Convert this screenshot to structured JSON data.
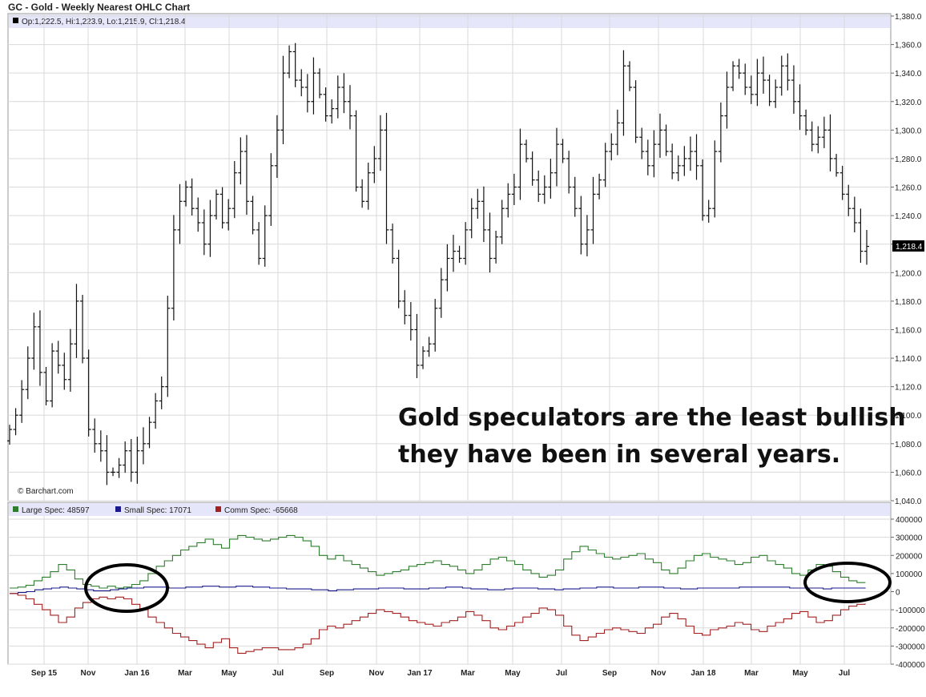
{
  "header": {
    "title": "GC - Gold - Weekly Nearest OHLC Chart",
    "ohlc_legend": "Op:1,222.5, Hi:1,223.9, Lo:1,215.9, Cl:1,218.4",
    "last_price": "1,218.4",
    "copyright": "© Barchart.com"
  },
  "annotation": {
    "line1": "Gold speculators are the least bullish",
    "line2": "they have been in several years."
  },
  "cot_legend": {
    "large": "Large Spec: 48597",
    "small": "Small Spec: 17071",
    "comm": "Comm Spec: -65668"
  },
  "colors": {
    "large": "#2e7d2e",
    "small": "#1a1a8c",
    "comm": "#a32020",
    "legend_band": "#e6e6fa",
    "grid": "#d9d9d9",
    "price_bar": "#111111",
    "circle": "#000000"
  },
  "chart_data": [
    {
      "type": "ohlc",
      "title": "GC - Gold - Weekly Nearest OHLC Chart",
      "ylim": [
        1040,
        1380
      ],
      "y_ticks": [
        "1,380.0",
        "1,360.0",
        "1,340.0",
        "1,320.0",
        "1,300.0",
        "1,280.0",
        "1,260.0",
        "1,240.0",
        "1,220.0",
        "1,200.0",
        "1,180.0",
        "1,160.0",
        "1,140.0",
        "1,120.0",
        "1,100.0",
        "1,080.0",
        "1,060.0",
        "1,040.0"
      ],
      "x_ticks": [
        "Sep 15",
        "Nov",
        "Jan 16",
        "Mar",
        "May",
        "Jul",
        "Sep",
        "Nov",
        "Jan 17",
        "Mar",
        "May",
        "Jul",
        "Sep",
        "Nov",
        "Jan 18",
        "Mar",
        "May",
        "Jul"
      ],
      "grid": true,
      "legend": "top-left",
      "weekly_closes": [
        1090,
        1100,
        1118,
        1140,
        1162,
        1130,
        1110,
        1145,
        1135,
        1125,
        1150,
        1180,
        1140,
        1090,
        1080,
        1075,
        1060,
        1060,
        1065,
        1075,
        1060,
        1075,
        1080,
        1095,
        1110,
        1120,
        1175,
        1230,
        1250,
        1260,
        1245,
        1235,
        1220,
        1240,
        1255,
        1235,
        1245,
        1270,
        1285,
        1250,
        1230,
        1210,
        1240,
        1275,
        1300,
        1340,
        1355,
        1335,
        1330,
        1320,
        1340,
        1325,
        1310,
        1315,
        1330,
        1320,
        1310,
        1260,
        1250,
        1270,
        1280,
        1300,
        1230,
        1210,
        1180,
        1170,
        1160,
        1135,
        1145,
        1150,
        1175,
        1195,
        1210,
        1215,
        1210,
        1230,
        1245,
        1250,
        1230,
        1210,
        1225,
        1245,
        1255,
        1260,
        1290,
        1280,
        1265,
        1255,
        1260,
        1270,
        1290,
        1280,
        1260,
        1245,
        1220,
        1230,
        1255,
        1265,
        1285,
        1290,
        1305,
        1345,
        1330,
        1295,
        1285,
        1275,
        1290,
        1300,
        1285,
        1270,
        1275,
        1280,
        1285,
        1275,
        1240,
        1245,
        1285,
        1310,
        1330,
        1345,
        1340,
        1330,
        1325,
        1340,
        1335,
        1320,
        1330,
        1345,
        1335,
        1320,
        1310,
        1300,
        1290,
        1295,
        1300,
        1280,
        1270,
        1255,
        1245,
        1235,
        1215,
        1218.4
      ]
    },
    {
      "type": "line",
      "title": "",
      "ylim": [
        -400000,
        400000
      ],
      "y_ticks": [
        "400000",
        "300000",
        "200000",
        "100000",
        "0",
        "-100000",
        "-200000",
        "-300000",
        "-400000"
      ],
      "legend": "top-left",
      "series": [
        {
          "name": "Large Spec",
          "values": [
            20000,
            25000,
            35000,
            60000,
            80000,
            110000,
            150000,
            120000,
            70000,
            40000,
            30000,
            20000,
            30000,
            20000,
            25000,
            40000,
            60000,
            100000,
            140000,
            170000,
            200000,
            230000,
            250000,
            270000,
            290000,
            260000,
            240000,
            290000,
            310000,
            300000,
            290000,
            280000,
            290000,
            300000,
            310000,
            300000,
            280000,
            250000,
            200000,
            180000,
            200000,
            170000,
            150000,
            130000,
            110000,
            90000,
            100000,
            110000,
            120000,
            140000,
            150000,
            160000,
            170000,
            150000,
            140000,
            120000,
            100000,
            120000,
            150000,
            180000,
            190000,
            170000,
            150000,
            120000,
            100000,
            80000,
            90000,
            120000,
            180000,
            220000,
            250000,
            230000,
            210000,
            190000,
            180000,
            190000,
            200000,
            210000,
            180000,
            160000,
            120000,
            100000,
            130000,
            170000,
            200000,
            210000,
            190000,
            180000,
            170000,
            150000,
            160000,
            190000,
            200000,
            170000,
            150000,
            130000,
            100000,
            90000,
            120000,
            150000,
            140000,
            110000,
            80000,
            60000,
            50000,
            48597
          ]
        },
        {
          "name": "Small Spec",
          "values": [
            -10000,
            -5000,
            0,
            10000,
            15000,
            20000,
            25000,
            20000,
            15000,
            10000,
            5000,
            5000,
            10000,
            15000,
            20000,
            20000,
            25000,
            25000,
            25000,
            20000,
            20000,
            25000,
            25000,
            30000,
            30000,
            25000,
            25000,
            30000,
            30000,
            25000,
            25000,
            20000,
            20000,
            15000,
            15000,
            15000,
            10000,
            10000,
            5000,
            10000,
            10000,
            15000,
            15000,
            15000,
            20000,
            20000,
            20000,
            15000,
            15000,
            15000,
            20000,
            20000,
            25000,
            25000,
            20000,
            15000,
            15000,
            10000,
            10000,
            15000,
            20000,
            20000,
            20000,
            15000,
            15000,
            10000,
            15000,
            15000,
            20000,
            20000,
            25000,
            25000,
            20000,
            20000,
            20000,
            25000,
            25000,
            25000,
            20000,
            20000,
            15000,
            15000,
            20000,
            20000,
            20000,
            20000,
            20000,
            25000,
            25000,
            25000,
            25000,
            25000,
            25000,
            20000,
            20000,
            20000,
            20000,
            15000,
            20000,
            20000,
            20000,
            20000,
            17071
          ]
        },
        {
          "name": "Comm Spec",
          "values": [
            -10000,
            -20000,
            -40000,
            -70000,
            -100000,
            -130000,
            -170000,
            -140000,
            -90000,
            -60000,
            -40000,
            -30000,
            -40000,
            -30000,
            -40000,
            -70000,
            -100000,
            -140000,
            -170000,
            -200000,
            -230000,
            -250000,
            -270000,
            -290000,
            -310000,
            -280000,
            -260000,
            -310000,
            -340000,
            -330000,
            -320000,
            -310000,
            -310000,
            -320000,
            -320000,
            -310000,
            -290000,
            -260000,
            -210000,
            -190000,
            -200000,
            -180000,
            -160000,
            -140000,
            -120000,
            -100000,
            -110000,
            -120000,
            -140000,
            -160000,
            -170000,
            -180000,
            -190000,
            -170000,
            -160000,
            -140000,
            -110000,
            -130000,
            -160000,
            -200000,
            -210000,
            -190000,
            -170000,
            -140000,
            -120000,
            -90000,
            -100000,
            -130000,
            -190000,
            -240000,
            -270000,
            -250000,
            -230000,
            -210000,
            -200000,
            -210000,
            -220000,
            -230000,
            -200000,
            -180000,
            -140000,
            -120000,
            -150000,
            -190000,
            -230000,
            -240000,
            -210000,
            -200000,
            -190000,
            -170000,
            -180000,
            -210000,
            -220000,
            -190000,
            -170000,
            -150000,
            -120000,
            -110000,
            -140000,
            -170000,
            -160000,
            -130000,
            -100000,
            -80000,
            -70000,
            -65668
          ]
        }
      ]
    }
  ]
}
